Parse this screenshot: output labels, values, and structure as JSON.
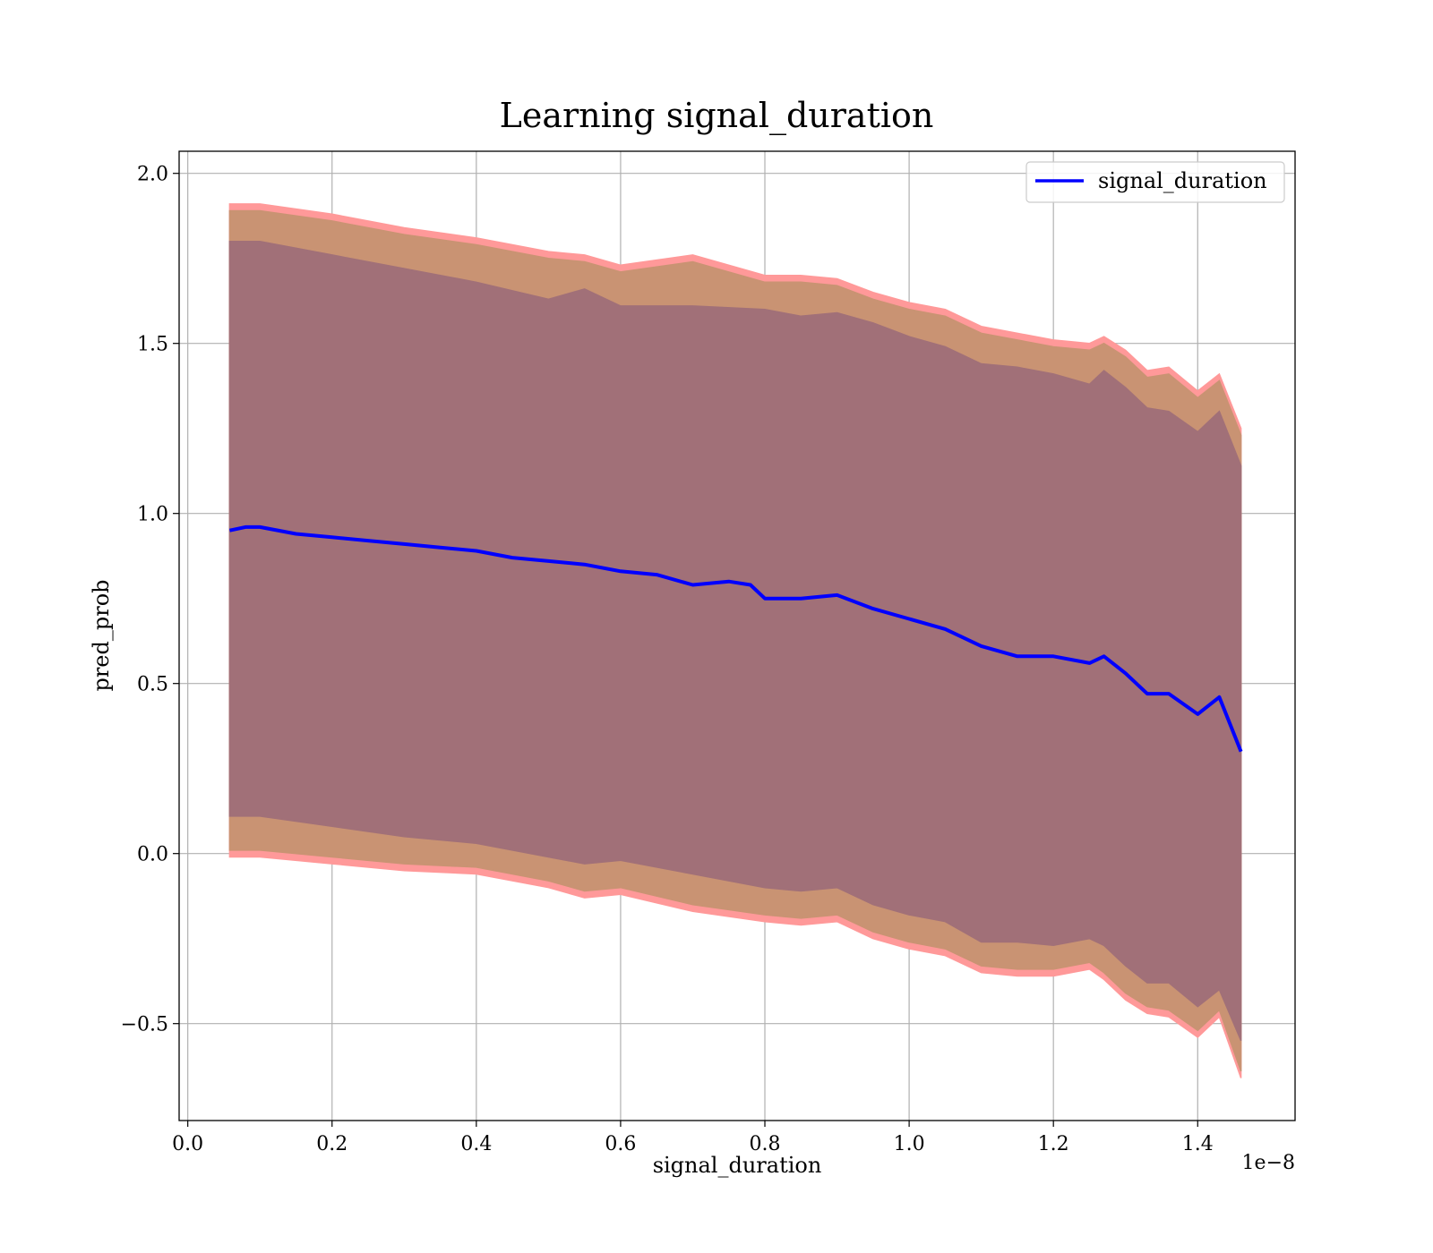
{
  "chart_data": {
    "type": "line",
    "title": "Learning signal_duration",
    "xlabel": "signal_duration",
    "ylabel": "pred_prob",
    "x_offset_label": "1e−8",
    "xlim": [
      -0.012,
      1.535
    ],
    "ylim": [
      -0.785,
      2.065
    ],
    "x_ticks": [
      0.0,
      0.2,
      0.4,
      0.6,
      0.8,
      1.0,
      1.2,
      1.4
    ],
    "x_tick_labels": [
      "0.0",
      "0.2",
      "0.4",
      "0.6",
      "0.8",
      "1.0",
      "1.2",
      "1.4"
    ],
    "y_ticks": [
      -0.5,
      0.0,
      0.5,
      1.0,
      1.5,
      2.0
    ],
    "y_tick_labels": [
      "−0.5",
      "0.0",
      "0.5",
      "1.0",
      "1.5",
      "2.0"
    ],
    "grid": true,
    "legend_position": "top-right",
    "colors": {
      "line": "#0000ff",
      "band_outer": "#ff9999",
      "band_middle": "#c99373",
      "band_inner": "#a17078"
    },
    "series": [
      {
        "name": "signal_duration",
        "x": [
          0.058,
          0.08,
          0.1,
          0.15,
          0.2,
          0.25,
          0.3,
          0.35,
          0.4,
          0.45,
          0.5,
          0.55,
          0.6,
          0.65,
          0.7,
          0.75,
          0.78,
          0.8,
          0.85,
          0.9,
          0.95,
          1.0,
          1.05,
          1.1,
          1.15,
          1.2,
          1.25,
          1.27,
          1.3,
          1.33,
          1.36,
          1.4,
          1.43,
          1.46
        ],
        "y": [
          0.95,
          0.96,
          0.96,
          0.94,
          0.93,
          0.92,
          0.91,
          0.9,
          0.89,
          0.87,
          0.86,
          0.85,
          0.83,
          0.82,
          0.79,
          0.8,
          0.79,
          0.75,
          0.75,
          0.76,
          0.72,
          0.69,
          0.66,
          0.61,
          0.58,
          0.58,
          0.56,
          0.58,
          0.53,
          0.47,
          0.47,
          0.41,
          0.46,
          0.3
        ]
      }
    ],
    "bands": [
      {
        "x": [
          0.058,
          0.1,
          0.2,
          0.3,
          0.4,
          0.5,
          0.55,
          0.6,
          0.7,
          0.8,
          0.85,
          0.9,
          0.95,
          1.0,
          1.05,
          1.1,
          1.15,
          1.2,
          1.25,
          1.27,
          1.3,
          1.33,
          1.36,
          1.4,
          1.43,
          1.46
        ],
        "upper": [
          1.91,
          1.91,
          1.88,
          1.84,
          1.81,
          1.77,
          1.76,
          1.73,
          1.76,
          1.7,
          1.7,
          1.69,
          1.65,
          1.62,
          1.6,
          1.55,
          1.53,
          1.51,
          1.5,
          1.52,
          1.48,
          1.42,
          1.43,
          1.36,
          1.41,
          1.25
        ],
        "lower": [
          -0.01,
          -0.01,
          -0.03,
          -0.05,
          -0.06,
          -0.1,
          -0.13,
          -0.12,
          -0.17,
          -0.2,
          -0.21,
          -0.2,
          -0.25,
          -0.28,
          -0.3,
          -0.35,
          -0.36,
          -0.36,
          -0.34,
          -0.37,
          -0.43,
          -0.47,
          -0.48,
          -0.54,
          -0.48,
          -0.66
        ]
      },
      {
        "x": [
          0.058,
          0.1,
          0.2,
          0.3,
          0.4,
          0.5,
          0.55,
          0.6,
          0.7,
          0.8,
          0.85,
          0.9,
          0.95,
          1.0,
          1.05,
          1.1,
          1.15,
          1.2,
          1.25,
          1.27,
          1.3,
          1.33,
          1.36,
          1.4,
          1.43,
          1.46
        ],
        "upper": [
          1.89,
          1.89,
          1.86,
          1.82,
          1.79,
          1.75,
          1.74,
          1.71,
          1.74,
          1.68,
          1.68,
          1.67,
          1.63,
          1.6,
          1.58,
          1.53,
          1.51,
          1.49,
          1.48,
          1.5,
          1.46,
          1.4,
          1.41,
          1.34,
          1.39,
          1.23
        ],
        "lower": [
          0.01,
          0.01,
          -0.01,
          -0.03,
          -0.04,
          -0.08,
          -0.11,
          -0.1,
          -0.15,
          -0.18,
          -0.19,
          -0.18,
          -0.23,
          -0.26,
          -0.28,
          -0.33,
          -0.34,
          -0.34,
          -0.32,
          -0.35,
          -0.41,
          -0.45,
          -0.46,
          -0.52,
          -0.46,
          -0.64
        ]
      },
      {
        "x": [
          0.058,
          0.1,
          0.2,
          0.3,
          0.4,
          0.5,
          0.55,
          0.6,
          0.7,
          0.8,
          0.85,
          0.9,
          0.95,
          1.0,
          1.05,
          1.1,
          1.15,
          1.2,
          1.25,
          1.27,
          1.3,
          1.33,
          1.36,
          1.4,
          1.43,
          1.46
        ],
        "upper": [
          1.8,
          1.8,
          1.76,
          1.72,
          1.68,
          1.63,
          1.66,
          1.61,
          1.61,
          1.6,
          1.58,
          1.59,
          1.56,
          1.52,
          1.49,
          1.44,
          1.43,
          1.41,
          1.38,
          1.42,
          1.37,
          1.31,
          1.3,
          1.24,
          1.3,
          1.14
        ],
        "lower": [
          0.11,
          0.11,
          0.08,
          0.05,
          0.03,
          -0.01,
          -0.03,
          -0.02,
          -0.06,
          -0.1,
          -0.11,
          -0.1,
          -0.15,
          -0.18,
          -0.2,
          -0.26,
          -0.26,
          -0.27,
          -0.25,
          -0.27,
          -0.33,
          -0.38,
          -0.38,
          -0.45,
          -0.4,
          -0.55
        ]
      }
    ]
  }
}
